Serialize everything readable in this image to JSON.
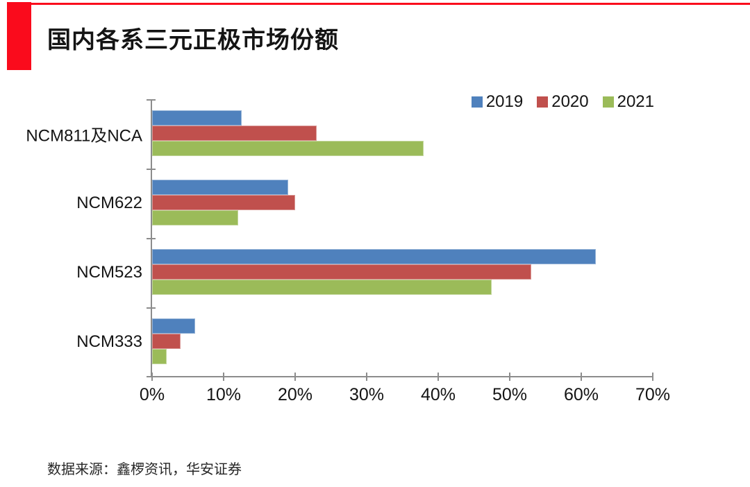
{
  "header": {
    "title": "国内各系三元正极市场份额"
  },
  "accent_color": "#FA0B1C",
  "axis_color": "#8c8c8c",
  "footer": {
    "source": "数据来源：鑫椤资讯，华安证券"
  },
  "chart_data": {
    "type": "bar",
    "orientation": "horizontal",
    "title": "国内各系三元正极市场份额",
    "categories": [
      "NCM811及NCA",
      "NCM622",
      "NCM523",
      "NCM333"
    ],
    "series": [
      {
        "name": "2019",
        "color": "#4F81BD",
        "border": "#95B3D7",
        "values": [
          12.5,
          19,
          62,
          6
        ]
      },
      {
        "name": "2020",
        "color": "#C0504D",
        "border": "#D99694",
        "values": [
          23,
          20,
          53,
          4
        ]
      },
      {
        "name": "2021",
        "color": "#9BBB59",
        "border": "#C2D69B",
        "values": [
          38,
          12,
          47.5,
          2
        ]
      }
    ],
    "x_axis": {
      "min": 0,
      "max": 70,
      "ticks": [
        "0%",
        "10%",
        "20%",
        "30%",
        "40%",
        "50%",
        "60%",
        "70%"
      ]
    },
    "y_axis_tick_count": 5,
    "legend_position": "top-right",
    "grid": false,
    "xlabel": "",
    "ylabel": ""
  }
}
